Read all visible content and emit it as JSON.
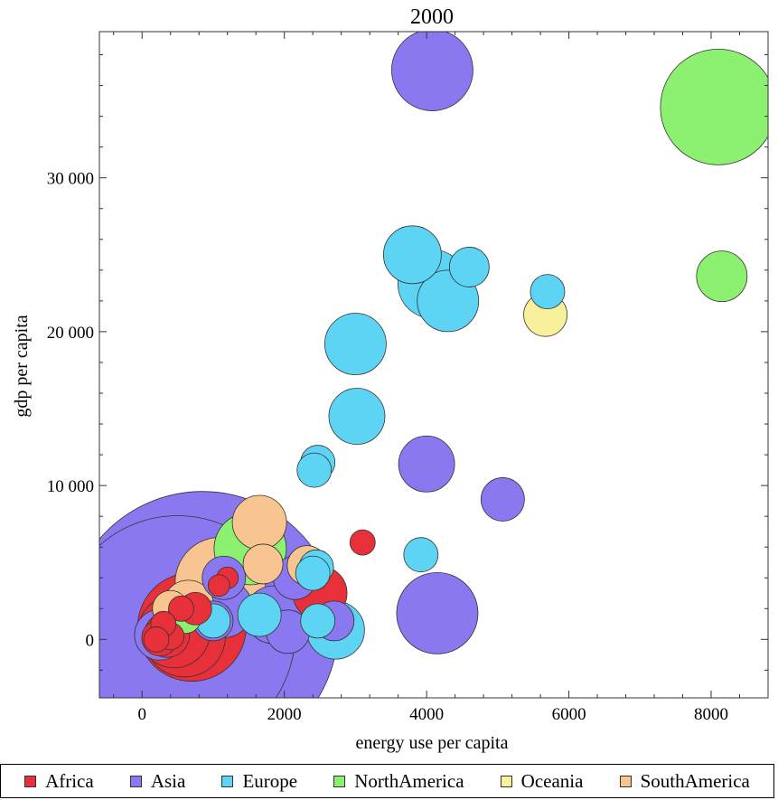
{
  "chart_data": {
    "type": "scatter",
    "title": "2000",
    "xlabel": "energy use per capita",
    "ylabel": "gdp per capita",
    "xlim": [
      -600,
      8800
    ],
    "ylim": [
      -3800,
      39500
    ],
    "xticks": [
      0,
      2000,
      4000,
      6000,
      8000
    ],
    "xtick_labels": [
      "0",
      "2000",
      "4000",
      "6000",
      "8000"
    ],
    "yticks": [
      0,
      10000,
      20000,
      30000
    ],
    "ytick_labels": [
      "0",
      "10 000",
      "20 000",
      "30 000"
    ],
    "legend_position": "bottom",
    "series": [
      {
        "name": "Africa",
        "color": "#e8303a",
        "points": [
          [
            3100,
            6300,
            14
          ],
          [
            2500,
            3000,
            30
          ],
          [
            1200,
            4000,
            12
          ],
          [
            1080,
            3500,
            12
          ],
          [
            750,
            2000,
            18
          ],
          [
            550,
            2000,
            14
          ],
          [
            700,
            800,
            60
          ],
          [
            600,
            200,
            45
          ],
          [
            450,
            500,
            40
          ],
          [
            300,
            1000,
            14
          ],
          [
            350,
            300,
            25
          ],
          [
            250,
            100,
            20
          ],
          [
            200,
            0,
            14
          ],
          [
            400,
            200,
            15
          ]
        ]
      },
      {
        "name": "Asia",
        "color": "#8a78f0",
        "points": [
          [
            4080,
            37000,
            45
          ],
          [
            4000,
            11400,
            31
          ],
          [
            5070,
            9100,
            24
          ],
          [
            4150,
            1700,
            45
          ],
          [
            2150,
            4000,
            24
          ],
          [
            1850,
            1600,
            32
          ],
          [
            2050,
            500,
            24
          ],
          [
            2700,
            1200,
            22
          ],
          [
            1000,
            1200,
            22
          ],
          [
            1150,
            2000,
            32
          ],
          [
            1150,
            4000,
            24
          ],
          [
            500,
            400,
            130
          ],
          [
            850,
            800,
            150
          ],
          [
            250,
            300,
            28
          ]
        ]
      },
      {
        "name": "Europe",
        "color": "#5ed4f5",
        "points": [
          [
            3800,
            25000,
            32
          ],
          [
            4080,
            23100,
            38
          ],
          [
            4300,
            22000,
            34
          ],
          [
            4600,
            24200,
            22
          ],
          [
            5700,
            22600,
            19
          ],
          [
            3000,
            19200,
            34
          ],
          [
            3020,
            14500,
            31
          ],
          [
            2470,
            11500,
            19
          ],
          [
            2420,
            11000,
            19
          ],
          [
            3920,
            5500,
            19
          ],
          [
            2450,
            4700,
            19
          ],
          [
            2400,
            4300,
            19
          ],
          [
            2470,
            1200,
            19
          ],
          [
            2720,
            600,
            32
          ],
          [
            1650,
            1600,
            24
          ],
          [
            1000,
            1200,
            19
          ]
        ]
      },
      {
        "name": "NorthAmerica",
        "color": "#8cf070",
        "points": [
          [
            8100,
            34600,
            64
          ],
          [
            8150,
            23600,
            28
          ],
          [
            1520,
            5900,
            40
          ],
          [
            600,
            1500,
            19
          ]
        ]
      },
      {
        "name": "Oceania",
        "color": "#f8f09a",
        "points": [
          [
            5670,
            21100,
            24
          ]
        ]
      },
      {
        "name": "SouthAmerica",
        "color": "#f8c590",
        "points": [
          [
            1650,
            7600,
            30
          ],
          [
            1700,
            4900,
            22
          ],
          [
            2320,
            4800,
            22
          ],
          [
            1100,
            3700,
            50
          ],
          [
            650,
            2200,
            28
          ],
          [
            400,
            2000,
            20
          ]
        ]
      }
    ]
  }
}
